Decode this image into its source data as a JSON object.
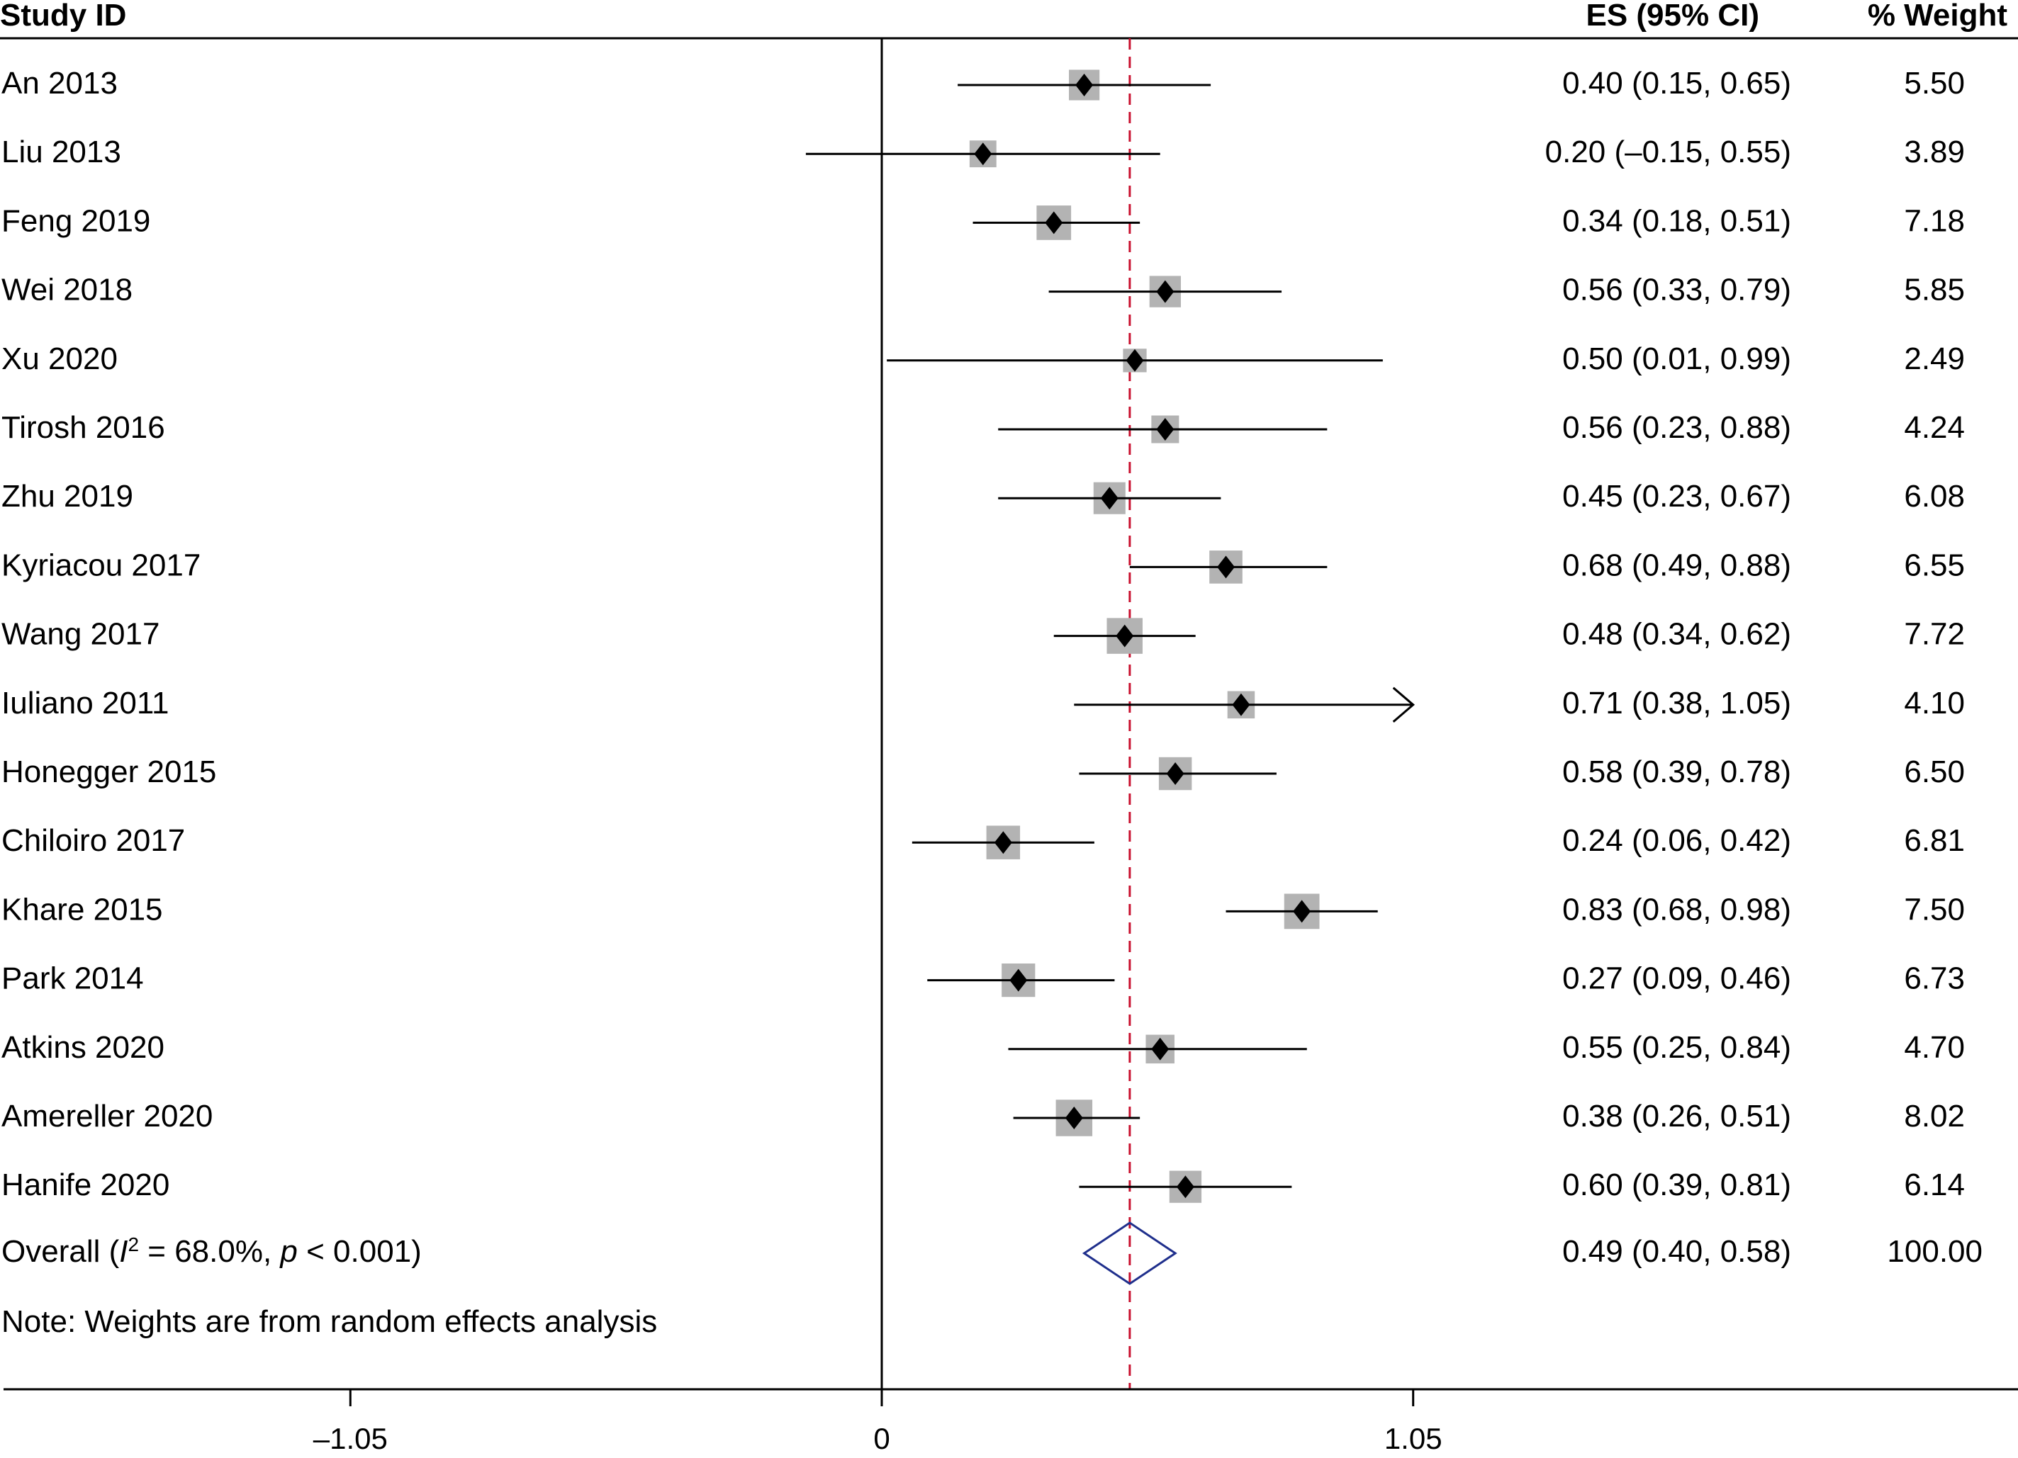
{
  "chart_data": {
    "type": "forest",
    "headers": {
      "study": "Study ID",
      "es": "ES (95% CI)",
      "weight": "% Weight"
    },
    "studies": [
      {
        "name": "An 2013",
        "es": 0.4,
        "lo": 0.15,
        "hi": 0.65,
        "ci_text": "0.40 (0.15, 0.65)",
        "weight": 5.5,
        "weight_text": "5.50"
      },
      {
        "name": "Liu 2013",
        "es": 0.2,
        "lo": -0.15,
        "hi": 0.55,
        "ci_text": "0.20 (–0.15, 0.55)",
        "weight": 3.89,
        "weight_text": "3.89"
      },
      {
        "name": "Feng 2019",
        "es": 0.34,
        "lo": 0.18,
        "hi": 0.51,
        "ci_text": "0.34 (0.18, 0.51)",
        "weight": 7.18,
        "weight_text": "7.18"
      },
      {
        "name": "Wei 2018",
        "es": 0.56,
        "lo": 0.33,
        "hi": 0.79,
        "ci_text": "0.56 (0.33, 0.79)",
        "weight": 5.85,
        "weight_text": "5.85"
      },
      {
        "name": "Xu 2020",
        "es": 0.5,
        "lo": 0.01,
        "hi": 0.99,
        "ci_text": "0.50 (0.01, 0.99)",
        "weight": 2.49,
        "weight_text": "2.49"
      },
      {
        "name": "Tirosh 2016",
        "es": 0.56,
        "lo": 0.23,
        "hi": 0.88,
        "ci_text": "0.56 (0.23, 0.88)",
        "weight": 4.24,
        "weight_text": "4.24"
      },
      {
        "name": "Zhu 2019",
        "es": 0.45,
        "lo": 0.23,
        "hi": 0.67,
        "ci_text": "0.45 (0.23, 0.67)",
        "weight": 6.08,
        "weight_text": "6.08"
      },
      {
        "name": "Kyriacou 2017",
        "es": 0.68,
        "lo": 0.49,
        "hi": 0.88,
        "ci_text": "0.68 (0.49, 0.88)",
        "weight": 6.55,
        "weight_text": "6.55"
      },
      {
        "name": "Wang 2017",
        "es": 0.48,
        "lo": 0.34,
        "hi": 0.62,
        "ci_text": "0.48 (0.34, 0.62)",
        "weight": 7.72,
        "weight_text": "7.72"
      },
      {
        "name": "Iuliano 2011",
        "es": 0.71,
        "lo": 0.38,
        "hi": 1.05,
        "ci_text": "0.71 (0.38, 1.05)",
        "weight": 4.1,
        "weight_text": "4.10",
        "arrow_right": true
      },
      {
        "name": "Honegger 2015",
        "es": 0.58,
        "lo": 0.39,
        "hi": 0.78,
        "ci_text": "0.58 (0.39, 0.78)",
        "weight": 6.5,
        "weight_text": "6.50"
      },
      {
        "name": "Chiloiro 2017",
        "es": 0.24,
        "lo": 0.06,
        "hi": 0.42,
        "ci_text": "0.24 (0.06, 0.42)",
        "weight": 6.81,
        "weight_text": "6.81"
      },
      {
        "name": "Khare 2015",
        "es": 0.83,
        "lo": 0.68,
        "hi": 0.98,
        "ci_text": "0.83 (0.68, 0.98)",
        "weight": 7.5,
        "weight_text": "7.50"
      },
      {
        "name": "Park 2014",
        "es": 0.27,
        "lo": 0.09,
        "hi": 0.46,
        "ci_text": "0.27 (0.09, 0.46)",
        "weight": 6.73,
        "weight_text": "6.73"
      },
      {
        "name": "Atkins 2020",
        "es": 0.55,
        "lo": 0.25,
        "hi": 0.84,
        "ci_text": "0.55 (0.25, 0.84)",
        "weight": 4.7,
        "weight_text": "4.70"
      },
      {
        "name": "Amereller 2020",
        "es": 0.38,
        "lo": 0.26,
        "hi": 0.51,
        "ci_text": "0.38 (0.26, 0.51)",
        "weight": 8.02,
        "weight_text": "8.02"
      },
      {
        "name": "Hanife 2020",
        "es": 0.6,
        "lo": 0.39,
        "hi": 0.81,
        "ci_text": "0.60 (0.39, 0.81)",
        "weight": 6.14,
        "weight_text": "6.14"
      }
    ],
    "overall": {
      "label_prefix": "Overall (",
      "i2_symbol": "I",
      "i2_sup": "2",
      "i2_rest": " = 68.0%, ",
      "p_symbol": "p",
      "p_rest": " < 0.001)",
      "es": 0.49,
      "lo": 0.4,
      "hi": 0.58,
      "ci_text": "0.49 (0.40, 0.58)",
      "weight_text": "100.00"
    },
    "note": "Note: Weights are from random effects analysis",
    "x_ticks": [
      {
        "value": -1.05,
        "label": "–1.05"
      },
      {
        "value": 0,
        "label": "0"
      },
      {
        "value": 1.05,
        "label": "1.05"
      }
    ],
    "null_line": 0,
    "colors": {
      "box": "#b3b3b3",
      "point": "#000000",
      "line": "#000000",
      "pooled_line": "#c8102e",
      "pooled_diamond": "#1f2f8c"
    }
  }
}
